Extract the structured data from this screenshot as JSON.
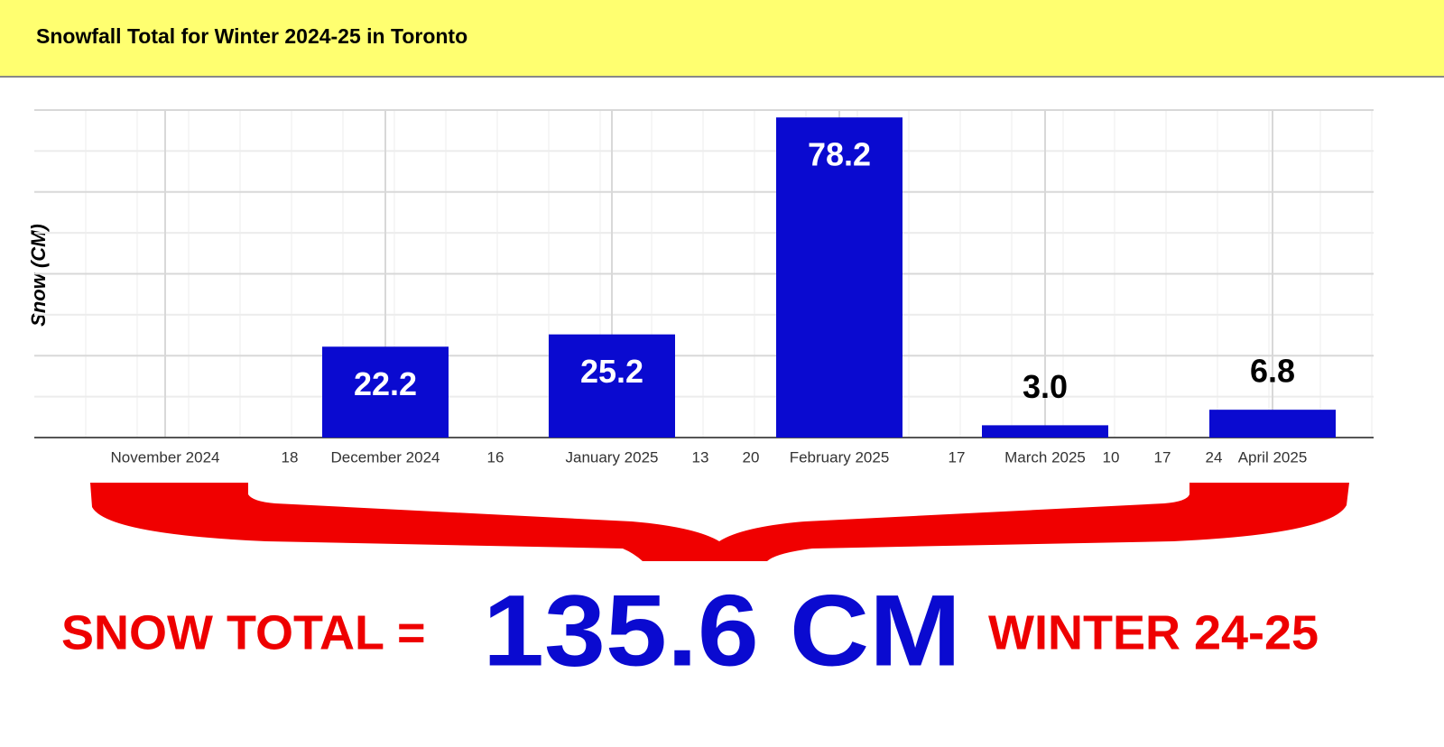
{
  "chart_data": {
    "type": "bar",
    "title": "Snowfall Total for Winter 2024-25 in Toronto",
    "y_label": "Snow (CM)",
    "categories": [
      "November 2024",
      "18",
      "December 2024",
      "16",
      "January 2025",
      "13",
      "20",
      "February 2025",
      "17",
      "March 2025",
      "10",
      "17",
      "24",
      "April 2025"
    ],
    "values": [
      null,
      null,
      22.2,
      null,
      25.2,
      null,
      null,
      78.2,
      null,
      3.0,
      null,
      null,
      null,
      6.8
    ],
    "value_labels": [
      null,
      null,
      "22.2",
      null,
      "25.2",
      null,
      null,
      "78.2",
      null,
      "3.0",
      null,
      null,
      null,
      "6.8"
    ],
    "color": "#0a0ad0",
    "ylim": [
      0,
      80
    ],
    "yticks": [
      0,
      10,
      20,
      30,
      40,
      50,
      60,
      70,
      80
    ],
    "grid": true,
    "annotations": [
      "SNOW TOTAL =",
      "135.6 CM",
      "WINTER 24-25"
    ]
  }
}
